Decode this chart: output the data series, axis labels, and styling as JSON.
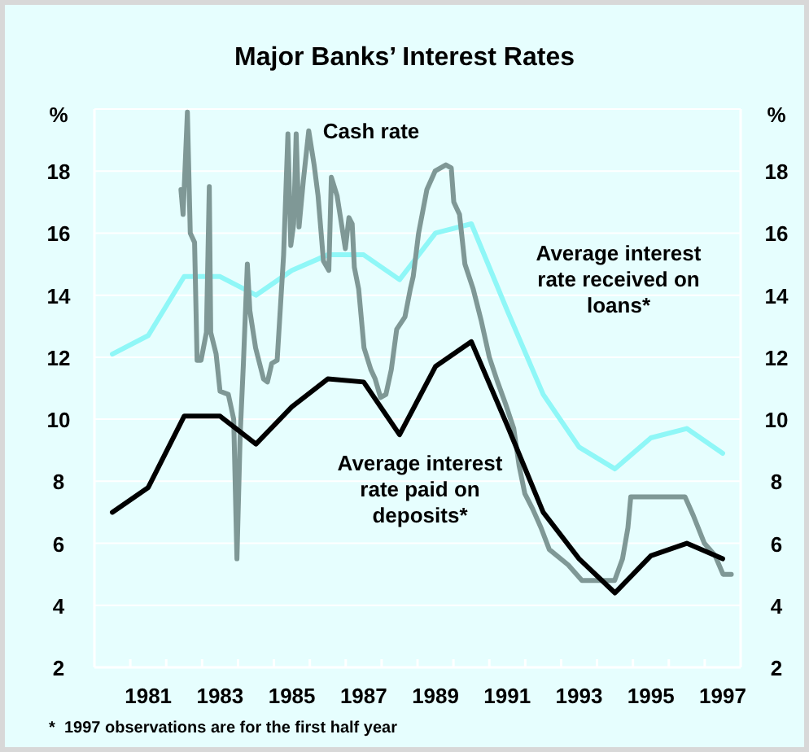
{
  "chart_data": {
    "type": "line",
    "title": "Major Banks’ Interest Rates",
    "ylabel": "%",
    "y2label": "%",
    "xlim": [
      1980,
      1998
    ],
    "ylim": [
      2,
      20
    ],
    "y2lim": [
      2,
      20
    ],
    "yticks": [
      2,
      4,
      6,
      8,
      10,
      12,
      14,
      16,
      18
    ],
    "y2ticks": [
      2,
      4,
      6,
      8,
      10,
      12,
      14,
      16,
      18
    ],
    "xticks": [
      {
        "value": 1981,
        "label": null
      },
      {
        "value": 1982,
        "label": null
      },
      {
        "value": 1983,
        "label": null
      },
      {
        "value": 1984,
        "label": null
      },
      {
        "value": 1985,
        "label": null
      },
      {
        "value": 1986,
        "label": null
      },
      {
        "value": 1987,
        "label": null
      },
      {
        "value": 1988,
        "label": null
      },
      {
        "value": 1989,
        "label": null
      },
      {
        "value": 1990,
        "label": null
      },
      {
        "value": 1991,
        "label": null
      },
      {
        "value": 1992,
        "label": null
      },
      {
        "value": 1993,
        "label": null
      },
      {
        "value": 1994,
        "label": null
      },
      {
        "value": 1995,
        "label": null
      },
      {
        "value": 1996,
        "label": null
      },
      {
        "value": 1997,
        "label": null
      },
      {
        "value": 1981.5,
        "label": "1981"
      },
      {
        "value": 1983.5,
        "label": "1983"
      },
      {
        "value": 1985.5,
        "label": "1985"
      },
      {
        "value": 1987.5,
        "label": "1987"
      },
      {
        "value": 1989.5,
        "label": "1989"
      },
      {
        "value": 1991.5,
        "label": "1991"
      },
      {
        "value": 1993.5,
        "label": "1993"
      },
      {
        "value": 1995.5,
        "label": "1995"
      },
      {
        "value": 1997.5,
        "label": "1997"
      }
    ],
    "grid": "y",
    "marker": "none",
    "line_style": "solid",
    "series": [
      {
        "name": "Average interest rate received on loans*",
        "color": "#8ff7f7",
        "x": [
          1980.5,
          1981.5,
          1982.5,
          1983.5,
          1984.5,
          1985.5,
          1986.5,
          1987.5,
          1988.5,
          1989.5,
          1990.5,
          1991.5,
          1992.5,
          1993.5,
          1994.5,
          1995.5,
          1996.5,
          1997.5
        ],
        "values": [
          12.1,
          12.7,
          14.6,
          14.6,
          14.0,
          14.8,
          15.3,
          15.3,
          14.5,
          16.0,
          16.3,
          13.5,
          10.8,
          9.1,
          8.4,
          9.4,
          9.7,
          8.9
        ]
      },
      {
        "name": "Cash rate",
        "color": "#7f9896",
        "x": [
          1982.41,
          1982.47,
          1982.59,
          1982.67,
          1982.79,
          1982.86,
          1982.97,
          1983.12,
          1983.2,
          1983.24,
          1983.39,
          1983.5,
          1983.73,
          1983.88,
          1983.97,
          1984.06,
          1984.15,
          1984.26,
          1984.33,
          1984.49,
          1984.71,
          1984.82,
          1984.94,
          1985.09,
          1985.27,
          1985.39,
          1985.47,
          1985.55,
          1985.62,
          1985.7,
          1985.82,
          1985.97,
          1986.12,
          1986.23,
          1986.38,
          1986.53,
          1986.6,
          1986.76,
          1986.99,
          1987.09,
          1987.18,
          1987.24,
          1987.36,
          1987.51,
          1987.7,
          1987.82,
          1987.97,
          1988.12,
          1988.27,
          1988.42,
          1988.65,
          1988.8,
          1988.88,
          1989.03,
          1989.26,
          1989.49,
          1989.79,
          1989.94,
          1990.01,
          1990.17,
          1990.32,
          1990.55,
          1990.77,
          1991.0,
          1991.23,
          1991.45,
          1991.68,
          1991.83,
          1991.99,
          1992.21,
          1992.44,
          1992.67,
          1993.2,
          1993.58,
          1994.49,
          1994.71,
          1994.86,
          1994.94,
          1996.45,
          1996.68,
          1996.99,
          1997.29,
          1997.51,
          1997.74
        ],
        "values": [
          17.4,
          16.6,
          19.9,
          16.0,
          15.7,
          11.9,
          11.9,
          12.8,
          17.5,
          12.8,
          12.1,
          10.9,
          10.8,
          10.0,
          5.5,
          9.5,
          11.8,
          15.0,
          13.5,
          12.3,
          11.3,
          11.2,
          11.8,
          11.9,
          15.3,
          19.2,
          15.6,
          16.3,
          19.2,
          16.2,
          17.7,
          19.3,
          18.2,
          17.2,
          15.1,
          14.8,
          17.8,
          17.2,
          15.5,
          16.5,
          16.3,
          14.9,
          14.2,
          12.3,
          11.6,
          11.3,
          10.7,
          10.8,
          11.6,
          12.9,
          13.3,
          14.2,
          14.6,
          16.0,
          17.4,
          18.0,
          18.2,
          18.1,
          17.0,
          16.6,
          15.0,
          14.2,
          13.2,
          12.0,
          11.2,
          10.5,
          9.7,
          8.5,
          7.6,
          7.1,
          6.5,
          5.8,
          5.3,
          4.8,
          4.8,
          5.5,
          6.5,
          7.5,
          7.5,
          6.9,
          6.0,
          5.6,
          5.0,
          5.0
        ]
      },
      {
        "name": "Average interest rate paid on deposits*",
        "color": "#000000",
        "x": [
          1980.5,
          1981.5,
          1982.5,
          1983.5,
          1984.5,
          1985.5,
          1986.5,
          1987.5,
          1988.5,
          1989.5,
          1990.5,
          1991.5,
          1992.5,
          1993.5,
          1994.5,
          1995.5,
          1996.5,
          1997.5
        ],
        "values": [
          7.0,
          7.8,
          10.1,
          10.1,
          9.2,
          10.4,
          11.3,
          11.2,
          9.5,
          11.7,
          12.5,
          9.8,
          7.0,
          5.5,
          4.4,
          5.6,
          6.0,
          5.5
        ]
      }
    ],
    "annotations": [
      "*  1997 observations are for the first half year"
    ]
  }
}
